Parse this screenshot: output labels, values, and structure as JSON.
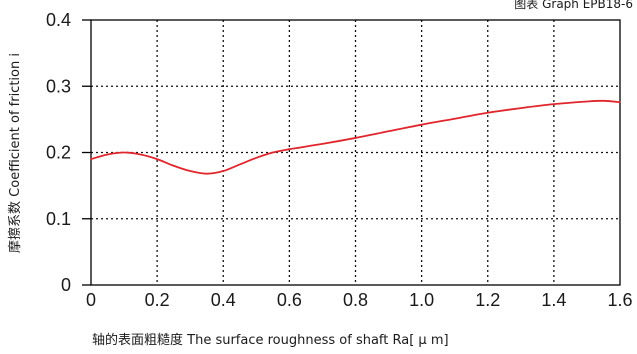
{
  "chart_data": {
    "type": "line",
    "title": "图表 Graph EPB18-6",
    "xlabel": "轴的表面粗糙度 The surface roughness of shaft  Ra[ μ m]",
    "ylabel": "摩擦系数 Coefficient of friction i",
    "xlim": [
      0,
      1.6
    ],
    "ylim": [
      0,
      0.4
    ],
    "xticks": [
      "0",
      "0.2",
      "0.4",
      "0.6",
      "0.8",
      "1.0",
      "1.2",
      "1.4",
      "1.6"
    ],
    "yticks": [
      "0",
      "0.1",
      "0.2",
      "0.3",
      "0.4"
    ],
    "grid": true,
    "series": [
      {
        "color": "#e0262c",
        "x": [
          0.0,
          0.05,
          0.1,
          0.15,
          0.2,
          0.25,
          0.3,
          0.35,
          0.4,
          0.45,
          0.5,
          0.55,
          0.6,
          0.7,
          0.8,
          0.9,
          1.0,
          1.1,
          1.2,
          1.3,
          1.4,
          1.5,
          1.55,
          1.6
        ],
        "y": [
          0.19,
          0.197,
          0.2,
          0.197,
          0.19,
          0.18,
          0.172,
          0.168,
          0.172,
          0.182,
          0.192,
          0.2,
          0.205,
          0.213,
          0.222,
          0.232,
          0.242,
          0.251,
          0.26,
          0.267,
          0.273,
          0.277,
          0.278,
          0.276
        ]
      }
    ]
  }
}
